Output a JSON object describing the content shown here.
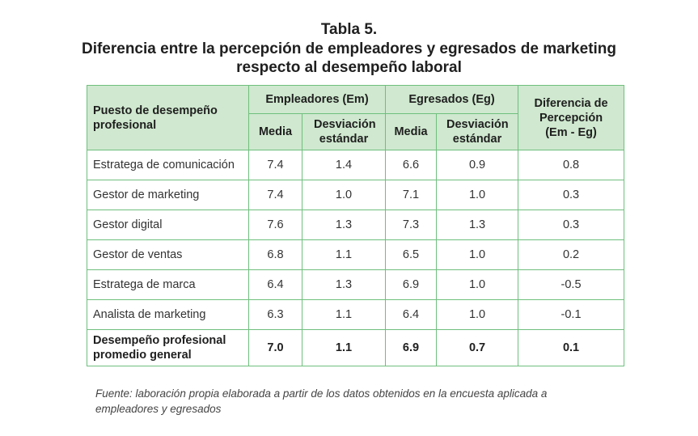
{
  "title": {
    "line1": "Tabla 5.",
    "line2": "Diferencia entre la percepción de empleadores y egresados de marketing",
    "line3": "respecto al desempeño laboral"
  },
  "table": {
    "header": {
      "puesto": "Puesto de desempeño profesional",
      "empleadores": "Empleadores (Em)",
      "egresados": "Egresados (Eg)",
      "diferencia": "Diferencia de Percepción (Em - Eg)",
      "media": "Media",
      "desviacion": "Desviación estándar"
    },
    "rows": [
      {
        "puesto": "Estratega de comunicación",
        "em_media": "7.4",
        "em_desv": "1.4",
        "eg_media": "6.6",
        "eg_desv": "0.9",
        "dif": "0.8"
      },
      {
        "puesto": "Gestor de marketing",
        "em_media": "7.4",
        "em_desv": "1.0",
        "eg_media": "7.1",
        "eg_desv": "1.0",
        "dif": "0.3"
      },
      {
        "puesto": "Gestor digital",
        "em_media": "7.6",
        "em_desv": "1.3",
        "eg_media": "7.3",
        "eg_desv": "1.3",
        "dif": "0.3"
      },
      {
        "puesto": "Gestor de ventas",
        "em_media": "6.8",
        "em_desv": "1.1",
        "eg_media": "6.5",
        "eg_desv": "1.0",
        "dif": "0.2"
      },
      {
        "puesto": "Estratega de marca",
        "em_media": "6.4",
        "em_desv": "1.3",
        "eg_media": "6.9",
        "eg_desv": "1.0",
        "dif": "-0.5"
      },
      {
        "puesto": "Analista de marketing",
        "em_media": "6.3",
        "em_desv": "1.1",
        "eg_media": "6.4",
        "eg_desv": "1.0",
        "dif": "-0.1"
      }
    ],
    "total": {
      "puesto": "Desempeño profesional promedio general",
      "em_media": "7.0",
      "em_desv": "1.1",
      "eg_media": "6.9",
      "eg_desv": "0.7",
      "dif": "0.1"
    }
  },
  "source": "Fuente: laboración propia elaborada a partir de los datos obtenidos en la encuesta aplicada a empleadores y egresados",
  "colors": {
    "border": "#6fbf7d",
    "header_bg": "#cfe8cf"
  }
}
